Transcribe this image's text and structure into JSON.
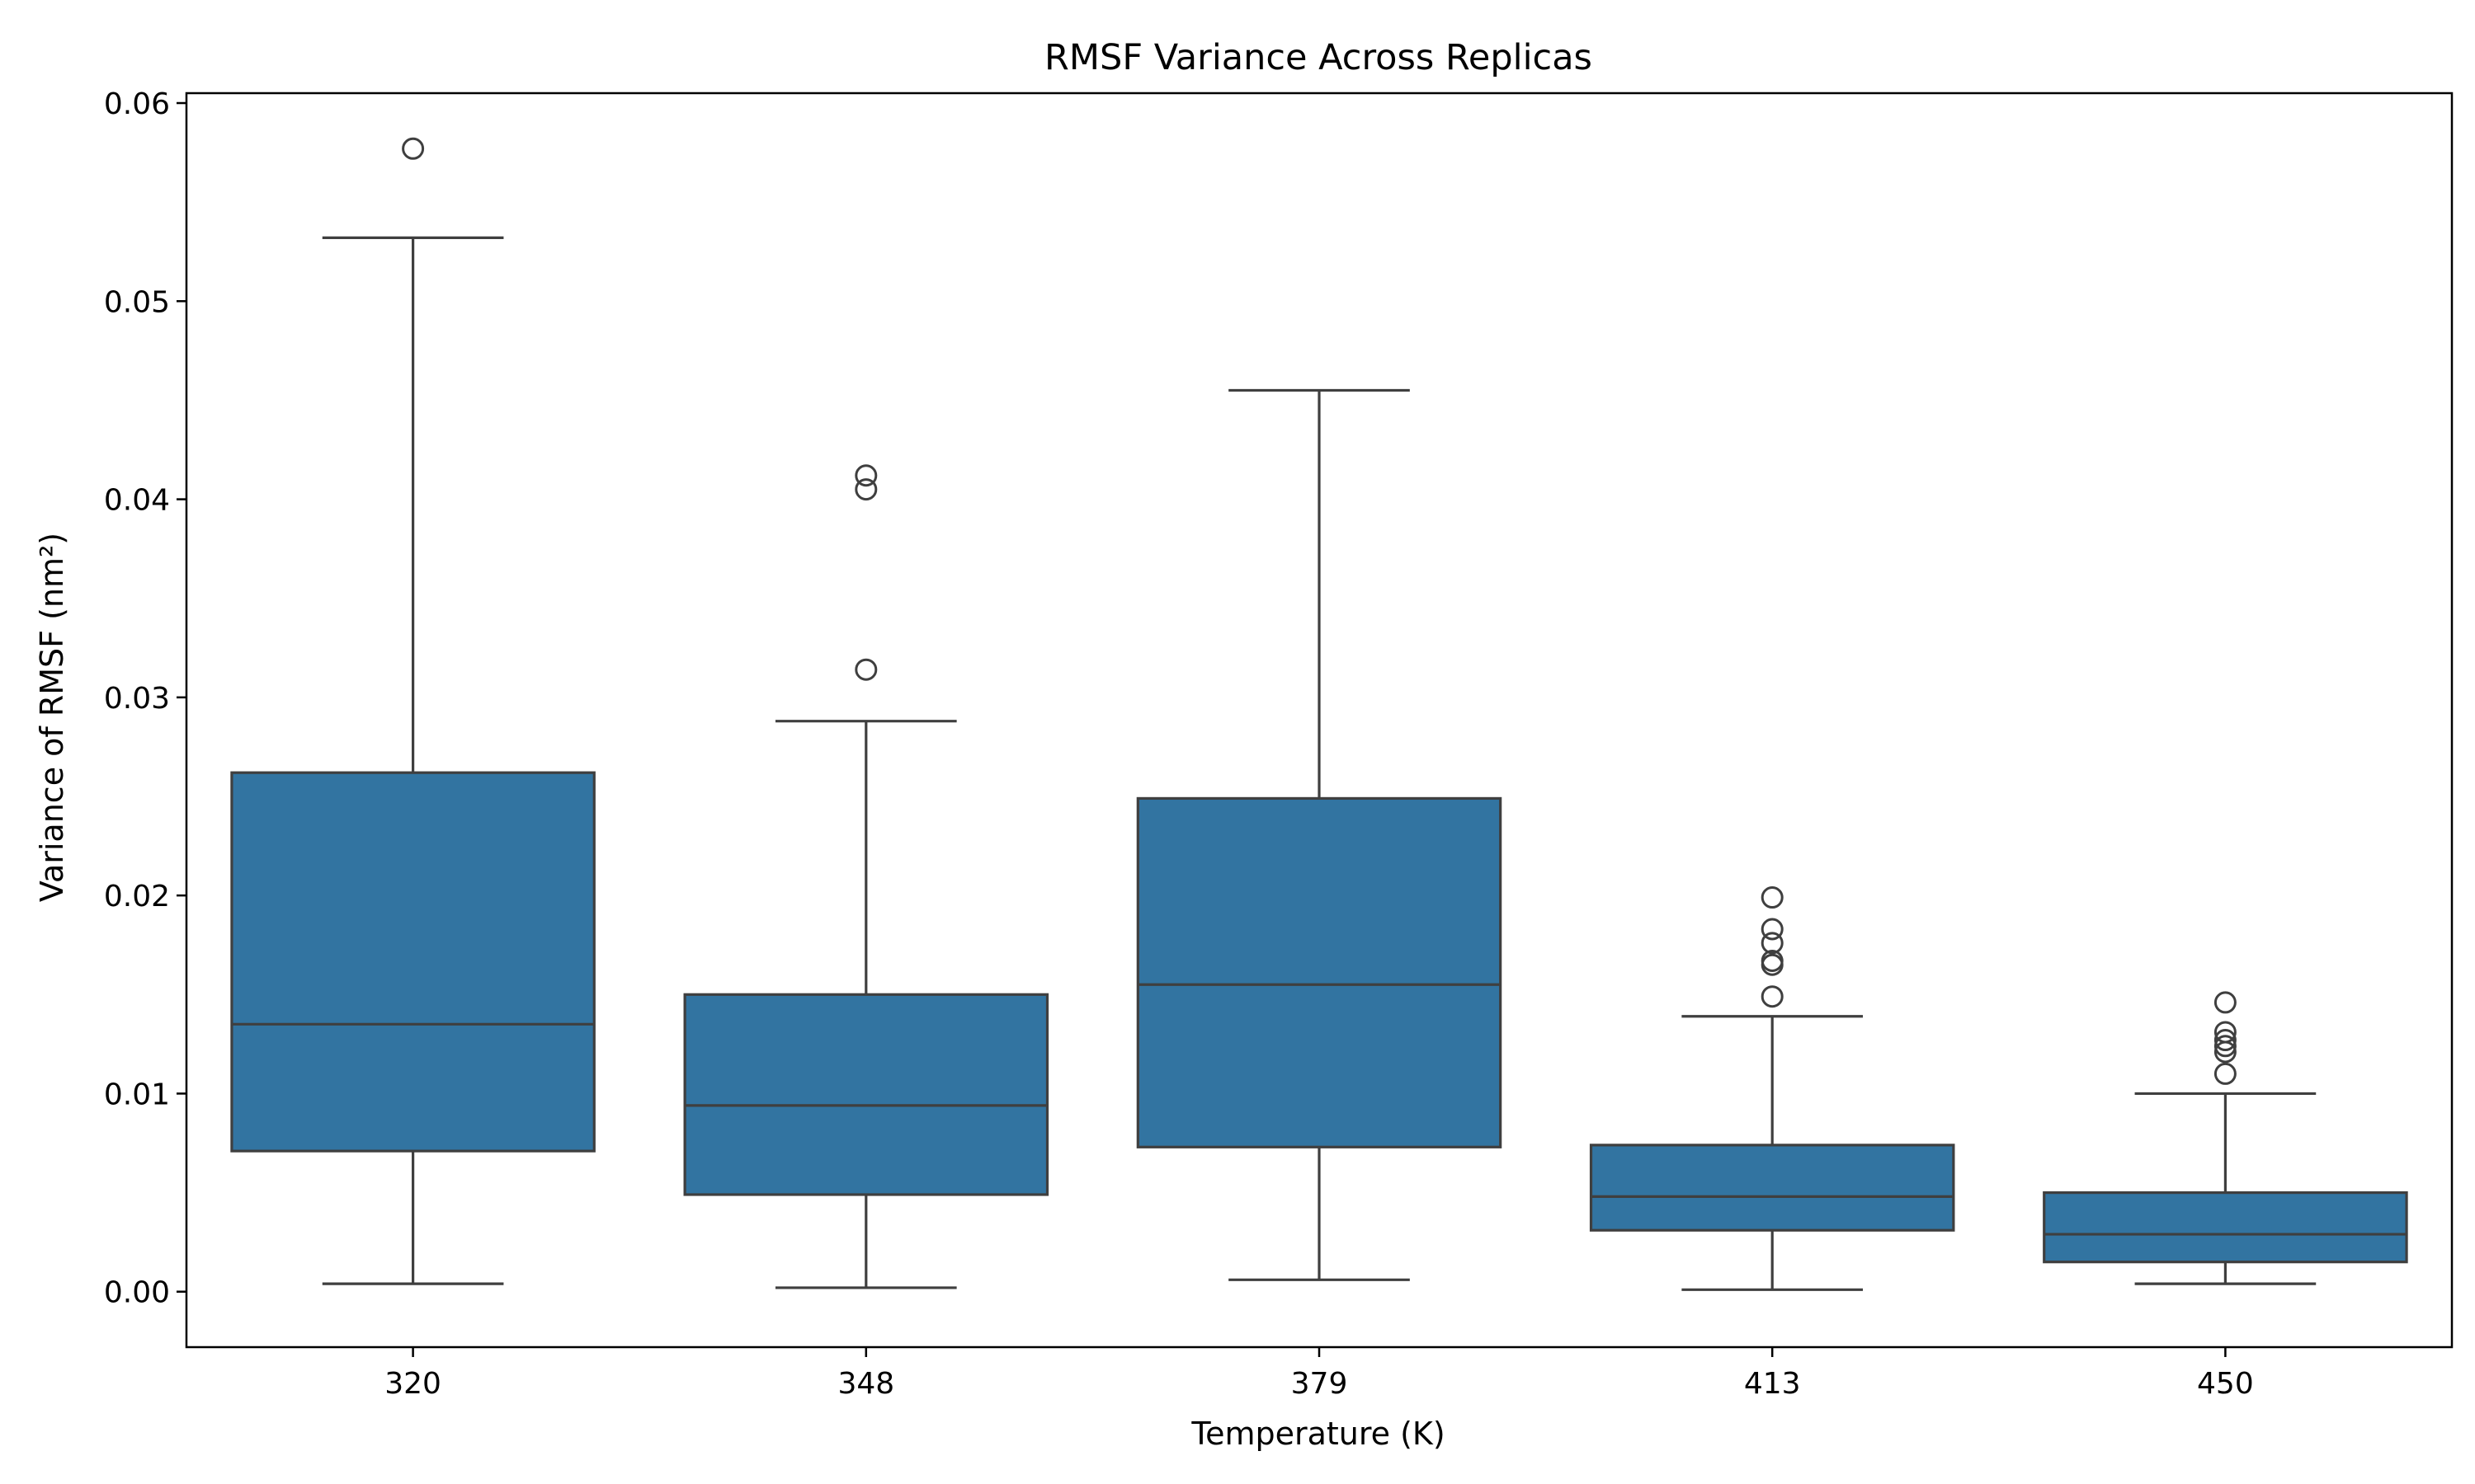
{
  "chart_data": {
    "type": "box",
    "title": "RMSF Variance Across Replicas",
    "xlabel": "Temperature (K)",
    "ylabel": "Variance of RMSF (nm²)",
    "categories": [
      "320",
      "348",
      "379",
      "413",
      "450"
    ],
    "ylim": [
      -0.0028,
      0.0605
    ],
    "yticks": [
      0.0,
      0.01,
      0.02,
      0.03,
      0.04,
      0.05,
      0.06
    ],
    "ytick_labels": [
      "0.00",
      "0.01",
      "0.02",
      "0.03",
      "0.04",
      "0.05",
      "0.06"
    ],
    "grid": false,
    "box_color": "#3274a1",
    "line_color": "#3f3f3f",
    "boxes": [
      {
        "category": "320",
        "whisker_low": 0.0004,
        "q1": 0.0071,
        "median": 0.0135,
        "q3": 0.0262,
        "whisker_high": 0.0532,
        "outliers": [
          0.0577
        ]
      },
      {
        "category": "348",
        "whisker_low": 0.0002,
        "q1": 0.0049,
        "median": 0.0094,
        "q3": 0.015,
        "whisker_high": 0.0288,
        "outliers": [
          0.0314,
          0.0405,
          0.0412
        ]
      },
      {
        "category": "379",
        "whisker_low": 0.0006,
        "q1": 0.0073,
        "median": 0.0155,
        "q3": 0.0249,
        "whisker_high": 0.0455,
        "outliers": []
      },
      {
        "category": "413",
        "whisker_low": 0.0001,
        "q1": 0.0031,
        "median": 0.0048,
        "q3": 0.0074,
        "whisker_high": 0.0139,
        "outliers": [
          0.0149,
          0.0165,
          0.0167,
          0.0176,
          0.0183,
          0.0199
        ]
      },
      {
        "category": "450",
        "whisker_low": 0.0004,
        "q1": 0.0015,
        "median": 0.0029,
        "q3": 0.005,
        "whisker_high": 0.01,
        "outliers": [
          0.011,
          0.0121,
          0.0124,
          0.0127,
          0.0131,
          0.0146
        ]
      }
    ]
  }
}
